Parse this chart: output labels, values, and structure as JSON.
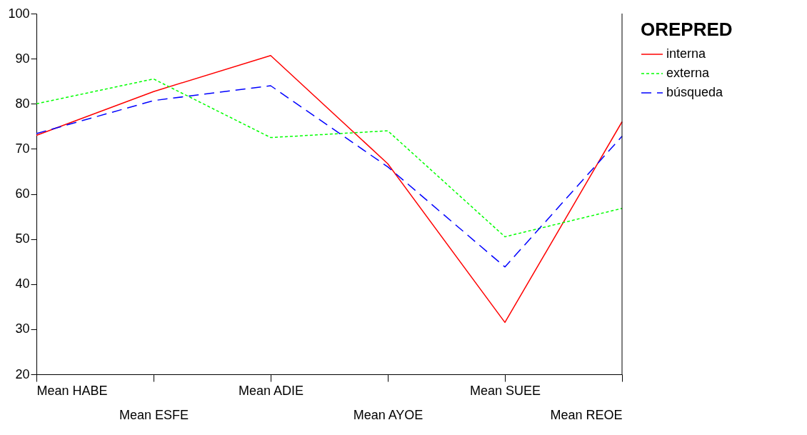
{
  "chart_data": {
    "type": "line",
    "categories": [
      "Mean HABE",
      "Mean ESFE",
      "Mean ADIE",
      "Mean AYOE",
      "Mean SUEE",
      "Mean REOE"
    ],
    "series": [
      {
        "name": "interna",
        "color": "#ff0000",
        "line_style": "solid",
        "values": [
          73,
          82.7,
          90.7,
          66.7,
          31.5,
          76
        ]
      },
      {
        "name": "externa",
        "color": "#00ff00",
        "line_style": "dotted",
        "values": [
          80,
          85.5,
          72.5,
          74,
          50.5,
          56.8
        ]
      },
      {
        "name": "búsqueda",
        "color": "#0000ff",
        "line_style": "dashed",
        "values": [
          73.4,
          80.7,
          84,
          66,
          43.8,
          72.8
        ]
      }
    ],
    "legend_title": "OREPRED",
    "legend": "right",
    "grid": false,
    "marker": "none",
    "ylim": [
      20,
      100
    ],
    "yticks": [
      20,
      30,
      40,
      50,
      60,
      70,
      80,
      90,
      100
    ]
  }
}
